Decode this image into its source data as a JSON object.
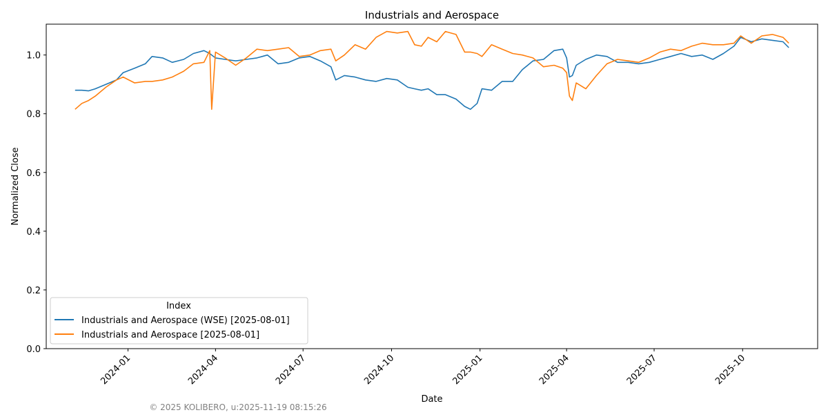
{
  "chart_data": {
    "type": "line",
    "title": "Industrials and Aerospace",
    "xlabel": "Date",
    "ylabel": "Normalized Close",
    "ylim": [
      0,
      1.105
    ],
    "xlim": [
      "2023-10-08",
      "2025-12-18"
    ],
    "yticks": [
      0.0,
      0.2,
      0.4,
      0.6,
      0.8,
      1.0
    ],
    "ytick_labels": [
      "0.0",
      "0.2",
      "0.4",
      "0.6",
      "0.8",
      "1.0"
    ],
    "xticks": [
      "2024-01-01",
      "2024-04-01",
      "2024-07-01",
      "2024-10-01",
      "2025-01-01",
      "2025-04-01",
      "2025-07-01",
      "2025-10-01"
    ],
    "xtick_labels": [
      "2024-01",
      "2024-04",
      "2024-07",
      "2024-10",
      "2025-01",
      "2025-04",
      "2025-07",
      "2025-10"
    ],
    "grid": false,
    "legend": {
      "title": "Index",
      "placement": "lower-left"
    },
    "x": [
      "2023-11-07",
      "2023-11-14",
      "2023-11-21",
      "2023-11-28",
      "2023-12-09",
      "2023-12-20",
      "2023-12-27",
      "2024-01-08",
      "2024-01-19",
      "2024-01-26",
      "2024-02-06",
      "2024-02-16",
      "2024-02-28",
      "2024-03-09",
      "2024-03-20",
      "2024-03-26",
      "2024-03-28",
      "2024-04-01",
      "2024-04-11",
      "2024-04-22",
      "2024-05-03",
      "2024-05-14",
      "2024-05-25",
      "2024-06-05",
      "2024-06-16",
      "2024-06-27",
      "2024-07-08",
      "2024-07-19",
      "2024-07-30",
      "2024-08-04",
      "2024-08-13",
      "2024-08-24",
      "2024-09-04",
      "2024-09-15",
      "2024-09-26",
      "2024-10-07",
      "2024-10-18",
      "2024-10-25",
      "2024-11-01",
      "2024-11-08",
      "2024-11-17",
      "2024-11-26",
      "2024-12-07",
      "2024-12-16",
      "2024-12-22",
      "2024-12-29",
      "2025-01-03",
      "2025-01-13",
      "2025-01-24",
      "2025-02-04",
      "2025-02-14",
      "2025-02-25",
      "2025-03-08",
      "2025-03-19",
      "2025-03-28",
      "2025-04-01",
      "2025-04-04",
      "2025-04-07",
      "2025-04-11",
      "2025-04-21",
      "2025-05-02",
      "2025-05-13",
      "2025-05-24",
      "2025-06-04",
      "2025-06-15",
      "2025-06-26",
      "2025-07-07",
      "2025-07-18",
      "2025-07-29",
      "2025-08-09",
      "2025-08-20",
      "2025-08-31",
      "2025-09-11",
      "2025-09-22",
      "2025-09-29",
      "2025-10-10",
      "2025-10-21",
      "2025-11-01",
      "2025-11-12",
      "2025-11-18"
    ],
    "series": [
      {
        "name": "Industrials and Aerospace (WSE) [2025-08-01]",
        "color": "#1f77b4",
        "values": [
          0.88,
          0.88,
          0.878,
          0.885,
          0.9,
          0.915,
          0.94,
          0.955,
          0.97,
          0.995,
          0.99,
          0.975,
          0.985,
          1.005,
          1.015,
          1.005,
          1.0,
          0.99,
          0.985,
          0.98,
          0.985,
          0.99,
          1.0,
          0.97,
          0.975,
          0.99,
          0.995,
          0.98,
          0.96,
          0.915,
          0.93,
          0.925,
          0.915,
          0.91,
          0.92,
          0.915,
          0.89,
          0.885,
          0.88,
          0.885,
          0.865,
          0.865,
          0.85,
          0.825,
          0.815,
          0.835,
          0.885,
          0.88,
          0.91,
          0.91,
          0.95,
          0.98,
          0.985,
          1.015,
          1.02,
          0.99,
          0.925,
          0.93,
          0.965,
          0.985,
          1.0,
          0.995,
          0.975,
          0.975,
          0.97,
          0.975,
          0.985,
          0.995,
          1.005,
          0.995,
          1.0,
          0.985,
          1.005,
          1.03,
          1.06,
          1.045,
          1.055,
          1.05,
          1.045,
          1.025
        ]
      },
      {
        "name": "Industrials and Aerospace [2025-08-01]",
        "color": "#ff7f0e",
        "values": [
          0.815,
          0.835,
          0.845,
          0.86,
          0.89,
          0.915,
          0.925,
          0.905,
          0.91,
          0.91,
          0.915,
          0.925,
          0.945,
          0.97,
          0.975,
          1.015,
          0.815,
          1.01,
          0.99,
          0.965,
          0.99,
          1.02,
          1.015,
          1.02,
          1.025,
          0.995,
          1.0,
          1.015,
          1.02,
          0.98,
          1.0,
          1.035,
          1.02,
          1.06,
          1.08,
          1.075,
          1.08,
          1.035,
          1.03,
          1.06,
          1.045,
          1.08,
          1.07,
          1.01,
          1.01,
          1.005,
          0.995,
          1.035,
          1.02,
          1.005,
          1.0,
          0.99,
          0.96,
          0.965,
          0.955,
          0.94,
          0.86,
          0.845,
          0.905,
          0.885,
          0.93,
          0.97,
          0.985,
          0.98,
          0.975,
          0.99,
          1.01,
          1.02,
          1.015,
          1.03,
          1.04,
          1.035,
          1.035,
          1.04,
          1.065,
          1.04,
          1.065,
          1.07,
          1.06,
          1.04
        ]
      }
    ]
  },
  "footer": {
    "copyright": "© 2025 KOLIBERO, u:2025-11-19 08:15:26"
  }
}
